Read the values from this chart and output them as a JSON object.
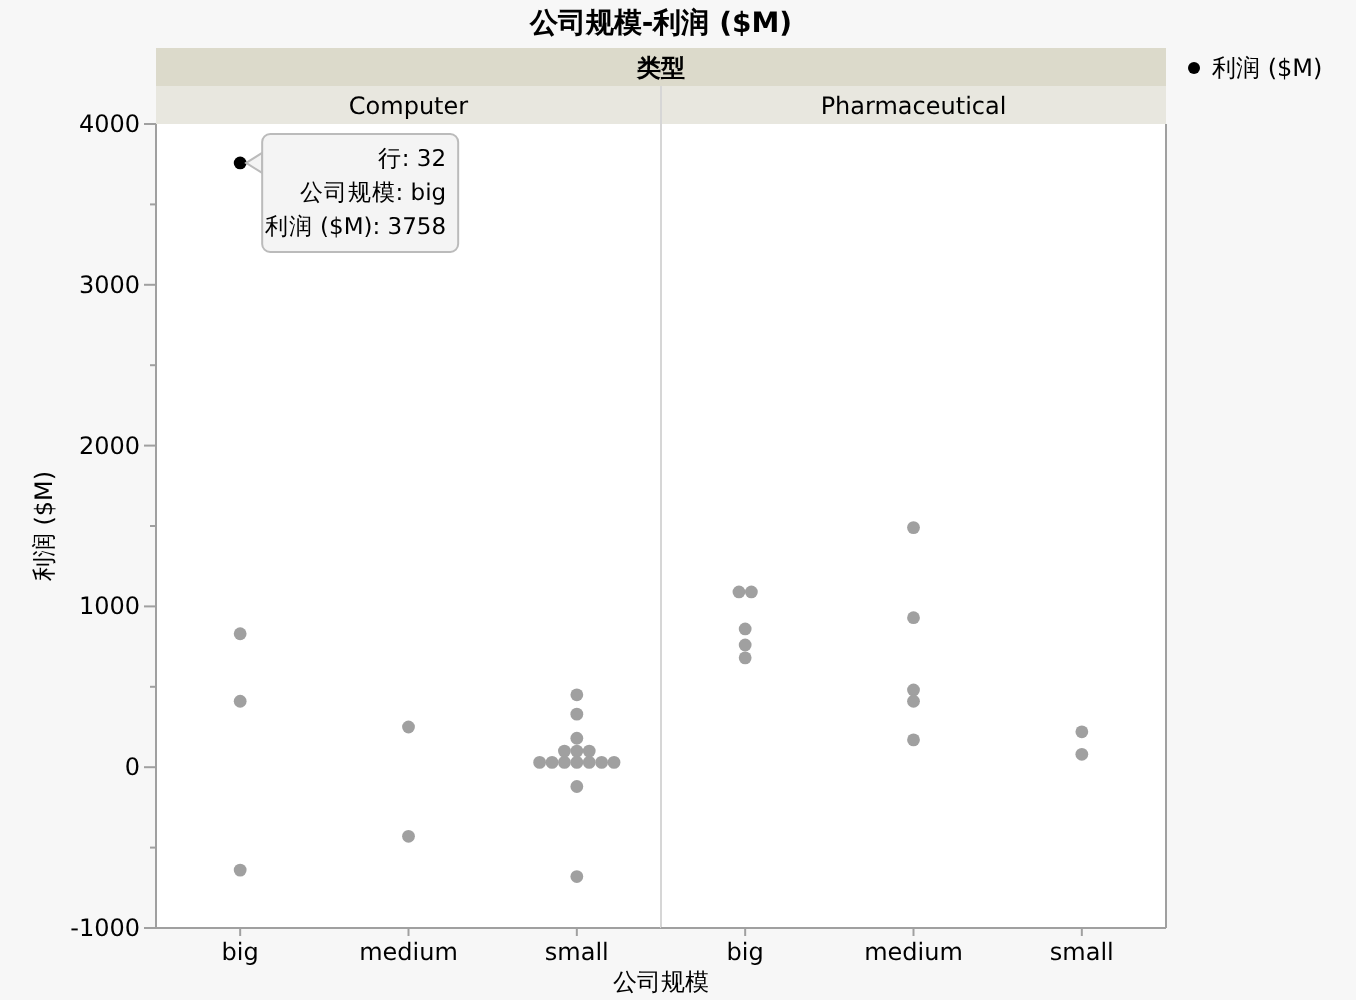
{
  "chart_data": [
    {
      "type": "scatter",
      "title": "公司规模-利润 ($M)",
      "subtitle": "类型",
      "xlabel": "公司规模",
      "ylabel": "利润 ($M)",
      "categories": [
        "big",
        "medium",
        "small"
      ],
      "series": [
        {
          "name": "利润 ($M)",
          "color": "#a0a0a0",
          "x": [
            "big",
            "big",
            "big",
            "big",
            "medium",
            "medium",
            "small",
            "small",
            "small",
            "small",
            "small",
            "small",
            "small",
            "small",
            "small",
            "small",
            "small",
            "small",
            "small",
            "small",
            "small"
          ],
          "values": [
            3758,
            830,
            410,
            -640,
            250,
            -430,
            450,
            330,
            180,
            100,
            100,
            100,
            30,
            30,
            30,
            30,
            30,
            30,
            30,
            -120,
            -680
          ],
          "colors": [
            "#000000",
            null,
            null,
            null,
            null,
            null,
            null,
            null,
            null,
            null,
            null,
            null,
            null,
            null,
            null,
            null,
            null,
            null,
            null,
            null,
            null
          ]
        }
      ],
      "ylim": [
        -1000,
        4000
      ],
      "yticks": [
        -1000,
        {
          "value": -500,
          "label": null
        },
        0,
        {
          "value": 500,
          "label": null
        },
        1000,
        {
          "value": 1500,
          "label": null
        },
        2000,
        {
          "value": 2500,
          "label": null
        },
        3000,
        {
          "value": 3500,
          "label": null
        },
        4000
      ],
      "legend": "top right",
      "marker": "circle",
      "grid": false,
      "annotations": [
        "Computer",
        {
          "text": "行: 32\n公司规模: big\n利润 ($M): 3758",
          "x": "big",
          "y": 3758
        }
      ]
    },
    {
      "type": "scatter",
      "categories": [
        "big",
        "medium",
        "small"
      ],
      "series": [
        {
          "color": "#a0a0a0",
          "x": [
            "big",
            "big",
            "big",
            "big",
            "big",
            "medium",
            "medium",
            "medium",
            "medium",
            "medium",
            "small",
            "small"
          ],
          "values": [
            1090,
            1090,
            860,
            760,
            680,
            1490,
            930,
            480,
            410,
            170,
            220,
            80
          ]
        }
      ],
      "ylim": [
        -1000,
        4000
      ],
      "tick_labels": "x",
      "marker": "circle",
      "grid": false,
      "annotations": [
        "Pharmaceutical"
      ]
    }
  ]
}
